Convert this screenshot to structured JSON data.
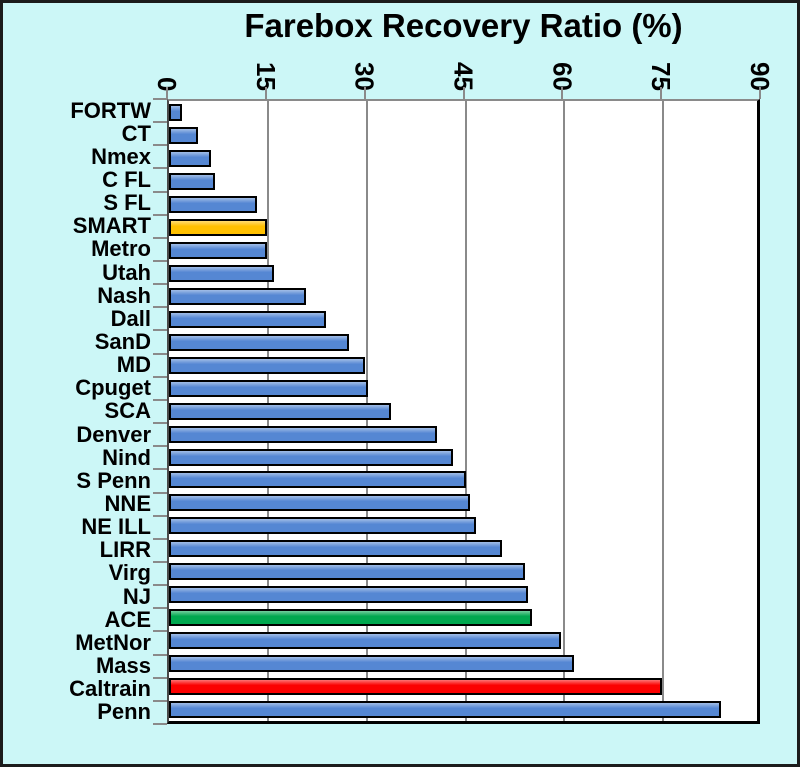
{
  "chart_data": {
    "type": "bar",
    "orientation": "horizontal",
    "title": "Farebox Recovery Ratio (%)",
    "xlabel": "",
    "ylabel": "",
    "xlim": [
      0,
      90
    ],
    "x_ticks": [
      0,
      15,
      30,
      45,
      60,
      75,
      90
    ],
    "x_tick_labels": [
      "0",
      "15",
      "30",
      "45",
      "60",
      "75",
      "90"
    ],
    "grid": "vertical gridlines at each tick, axis on top",
    "legend": "none",
    "categories": [
      "FORTW",
      "CT",
      "Nmex",
      "C FL",
      "S FL",
      "SMART",
      "Metro",
      "Utah",
      "Nash",
      "Dall",
      "SanD",
      "MD",
      "Cpuget",
      "SCA",
      "Denver",
      "Nind",
      "S Penn",
      "NNE",
      "NE ILL",
      "LIRR",
      "Virg",
      "NJ",
      "ACE",
      "MetNor",
      "Mass",
      "Caltrain",
      "Penn"
    ],
    "values": [
      2,
      4.5,
      6.5,
      7,
      13.5,
      15,
      15,
      16,
      21,
      24,
      27.5,
      30,
      30.5,
      34,
      41,
      43.5,
      45.5,
      46,
      47,
      51,
      54.5,
      55,
      55.5,
      60,
      62,
      75.5,
      84.5
    ],
    "highlighted_bars": {
      "SMART": "#FFC000",
      "ACE": "#00A84F",
      "Caltrain": "#FB0000"
    },
    "default_bar_color": "#5587D3"
  },
  "colors": {
    "background": "#CCF7F7",
    "plot_background": "#FFFFFF",
    "gridline": "#8A8A8A",
    "bar_border": "#000000",
    "outer_border": "#1C1C1C",
    "text": "#000000"
  }
}
